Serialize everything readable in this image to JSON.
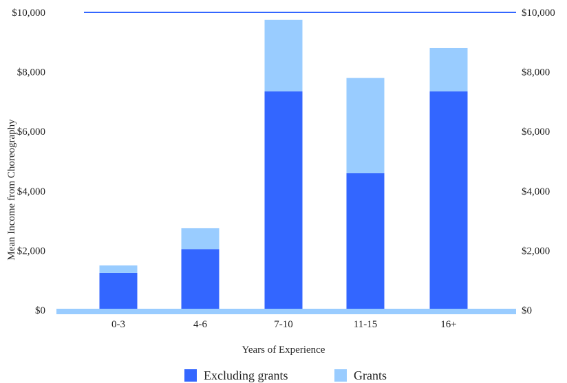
{
  "chart_data": {
    "type": "bar",
    "stacked": true,
    "categories": [
      "0-3",
      "4-6",
      "7-10",
      "11-15",
      "16+"
    ],
    "series": [
      {
        "name": "Excluding grants",
        "color": "#3366ff",
        "values": [
          1250,
          2050,
          7350,
          4600,
          7350
        ]
      },
      {
        "name": "Grants",
        "color": "#99ccff",
        "values": [
          250,
          700,
          2400,
          3200,
          1450
        ]
      }
    ],
    "xlabel": "Years of Experience",
    "ylabel": "Mean Income from Choreography",
    "ylim": [
      0,
      10000
    ],
    "yticks": [
      "$0",
      "$2,000",
      "$4,000",
      "$6,000",
      "$8,000",
      "$10,000"
    ],
    "ytick_values": [
      0,
      2000,
      4000,
      6000,
      8000,
      10000
    ],
    "right_axis": true,
    "grid": false,
    "legend_position": "bottom",
    "colors": {
      "top_line": "#3366ff",
      "baseline": "#99ccff"
    }
  }
}
